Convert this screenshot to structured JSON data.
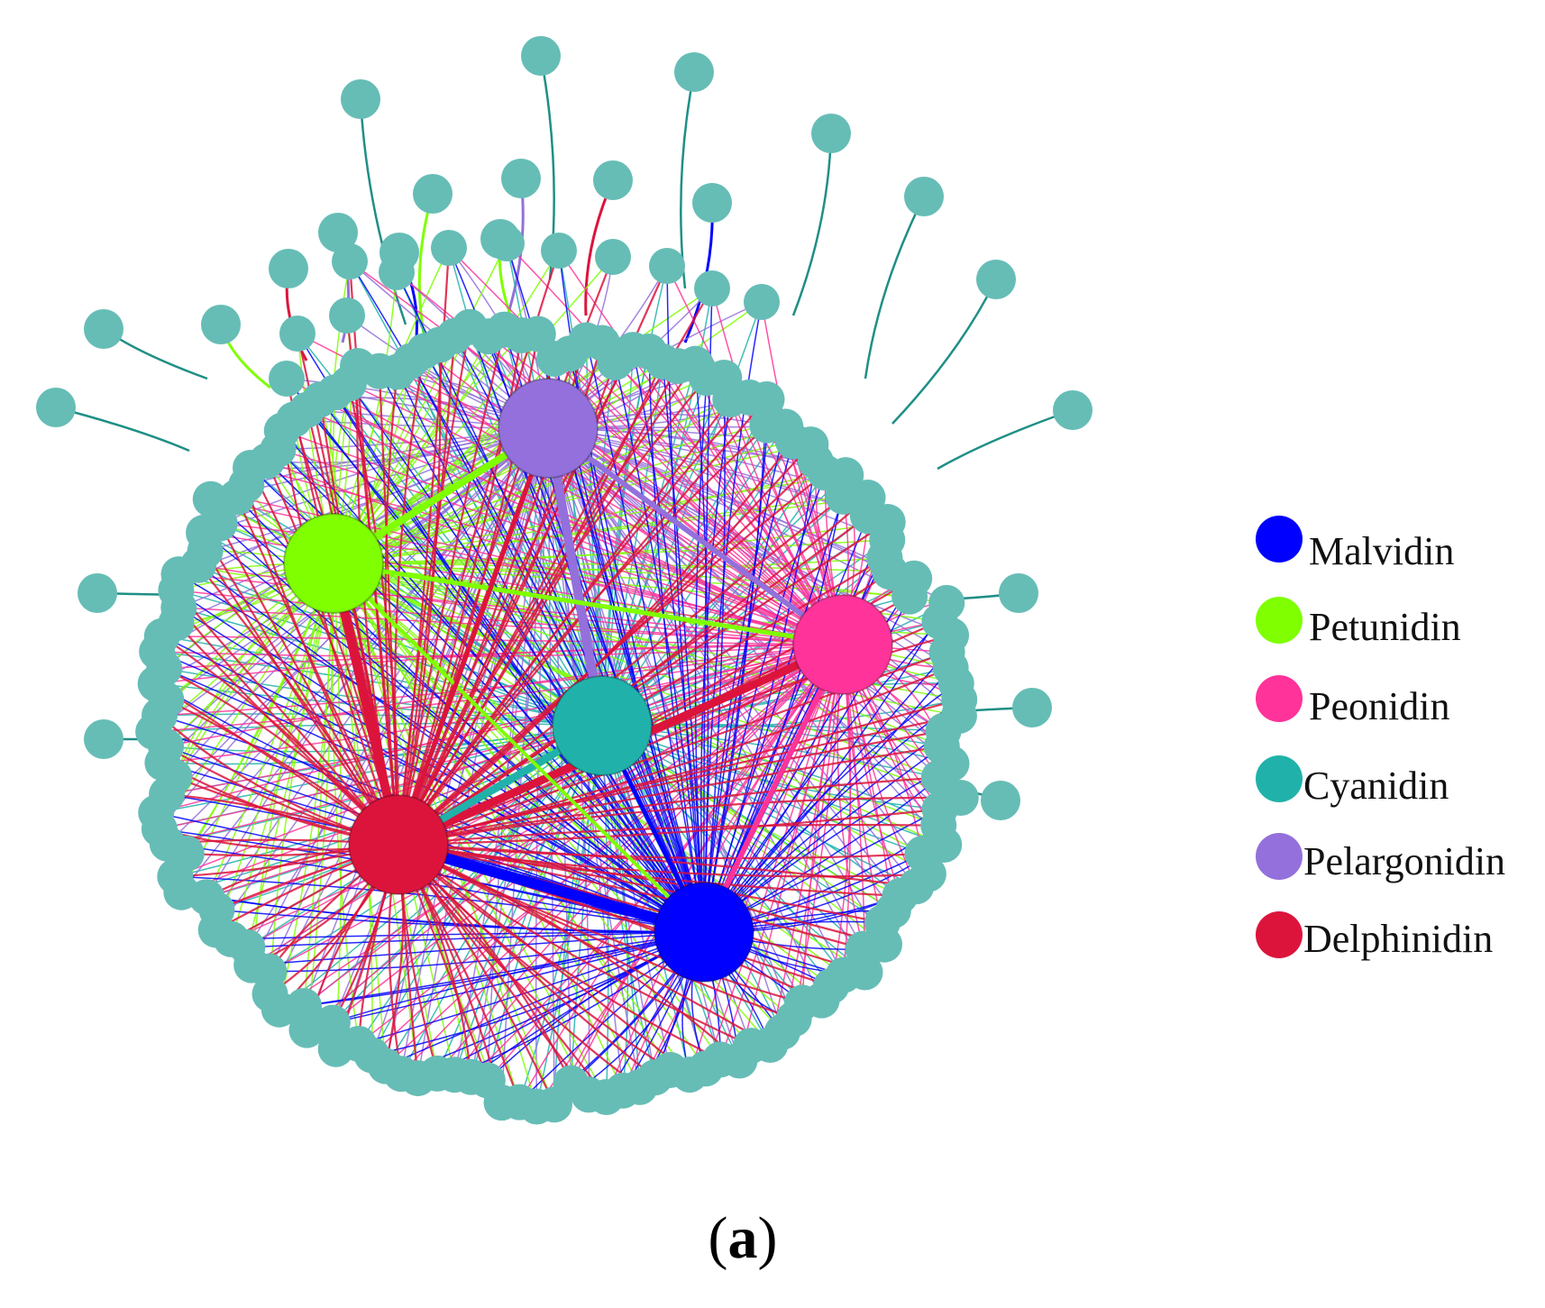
{
  "hub_colors": {
    "Malvidin": "#0000ff",
    "Petunidin": "#7fff00",
    "Peonidin": "#ff3399",
    "Cyanidin": "#20b2aa",
    "Pelargonidin": "#9370db",
    "Delphinidin": "#dc143c"
  },
  "target_color": "#66bdb6",
  "legend": [
    {
      "key": "Malvidin",
      "label": "Malvidin",
      "color": "#0000ff"
    },
    {
      "key": "Petunidin",
      "label": "Petunidin",
      "color": "#7fff00"
    },
    {
      "key": "Peonidin",
      "label": "Peonidin",
      "color": "#ff3399"
    },
    {
      "key": "Cyanidin",
      "label": "Cyanidin",
      "color": "#20b2aa"
    },
    {
      "key": "Pelargonidin",
      "label": "Pelargonidin",
      "color": "#9370db"
    },
    {
      "key": "Delphinidin",
      "label": "Delphinidin",
      "color": "#dc143c"
    }
  ],
  "panel_label": {
    "open": "(",
    "letter": "a",
    "close": ")"
  }
}
